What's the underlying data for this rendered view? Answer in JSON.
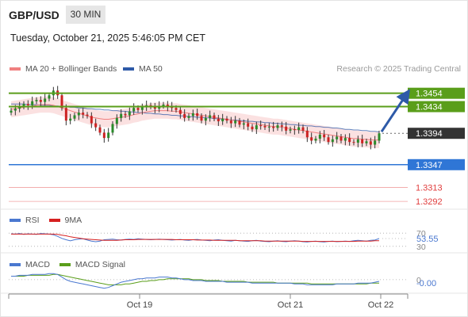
{
  "header": {
    "symbol": "GBP/USD",
    "timeframe": "30 MIN",
    "datetime": "Tuesday, October 21, 2025 5:46:05 PM CET"
  },
  "legend": {
    "ma20_label": "MA 20 + Bollinger Bands",
    "ma50_label": "MA 50",
    "credit": "Research © 2025 Trading Central"
  },
  "colors": {
    "ma20": "#f08080",
    "ma50": "#2e5aa8",
    "band_fill": "#fadcdc",
    "resistance": "#5a9e1a",
    "support_pivot": "#2f76d6",
    "support": "#e03c3c",
    "current": "#333333",
    "rsi": "#4a78d0",
    "rsi_ma": "#d62020",
    "macd": "#4a78d0",
    "macd_signal": "#5a9e1a",
    "candle_up": "#2a8a2a",
    "candle_down": "#cc2222"
  },
  "chart_data": [
    {
      "type": "candlestick",
      "name": "price",
      "x_tick_labels": [
        "Oct 19",
        "Oct 21",
        "Oct 22"
      ],
      "ylim": [
        1.3285,
        1.3475
      ],
      "levels": [
        {
          "label": "1.3454",
          "value": 1.3454,
          "kind": "resistance"
        },
        {
          "label": "1.3434",
          "value": 1.3434,
          "kind": "resistance"
        },
        {
          "label": "1.3394",
          "value": 1.3394,
          "kind": "current"
        },
        {
          "label": "1.3347",
          "value": 1.3347,
          "kind": "pivot"
        },
        {
          "label": "1.3313",
          "value": 1.3313,
          "kind": "support"
        },
        {
          "label": "1.3292",
          "value": 1.3292,
          "kind": "support"
        }
      ],
      "arrow": {
        "from": 1.3394,
        "to": 1.3454
      },
      "close": [
        1.3428,
        1.3431,
        1.3434,
        1.3438,
        1.3436,
        1.3442,
        1.3444,
        1.3441,
        1.3446,
        1.3451,
        1.3458,
        1.3451,
        1.3432,
        1.3413,
        1.3416,
        1.3421,
        1.3425,
        1.3422,
        1.342,
        1.3409,
        1.3403,
        1.3395,
        1.3387,
        1.3395,
        1.3408,
        1.3417,
        1.3423,
        1.3421,
        1.3427,
        1.3432,
        1.3429,
        1.3433,
        1.3436,
        1.3434,
        1.3431,
        1.3435,
        1.3437,
        1.3434,
        1.3432,
        1.3429,
        1.3423,
        1.3417,
        1.342,
        1.3424,
        1.342,
        1.3413,
        1.3417,
        1.3421,
        1.3416,
        1.3412,
        1.3416,
        1.3413,
        1.3409,
        1.3413,
        1.3407,
        1.3409,
        1.3404,
        1.34,
        1.3406,
        1.3405,
        1.3403,
        1.3404,
        1.3402,
        1.3406,
        1.3404,
        1.3398,
        1.34,
        1.3399,
        1.3403,
        1.3398,
        1.3388,
        1.3383,
        1.3386,
        1.3392,
        1.3388,
        1.3381,
        1.3385,
        1.3389,
        1.3383,
        1.3387,
        1.3381,
        1.338,
        1.3385,
        1.3379,
        1.3382,
        1.3377,
        1.3383,
        1.3394
      ],
      "ma20": [
        1.343,
        1.3431,
        1.3432,
        1.3433,
        1.3434,
        1.3435,
        1.3436,
        1.3437,
        1.3437,
        1.3437,
        1.3436,
        1.3434,
        1.3432,
        1.343,
        1.3428,
        1.3426,
        1.3424,
        1.3422,
        1.342,
        1.3418,
        1.3417,
        1.3416,
        1.3415,
        1.3415,
        1.3416,
        1.3417,
        1.3418,
        1.3419,
        1.342,
        1.3422,
        1.3423,
        1.3425,
        1.3426,
        1.3427,
        1.3428,
        1.3428,
        1.3428,
        1.3428,
        1.3427,
        1.3427,
        1.3426,
        1.3425,
        1.3424,
        1.3423,
        1.3422,
        1.3421,
        1.342,
        1.3419,
        1.3418,
        1.3417,
        1.3416,
        1.3415,
        1.3414,
        1.3413,
        1.3412,
        1.3411,
        1.341,
        1.3409,
        1.3408,
        1.3407,
        1.3406,
        1.3405,
        1.3404,
        1.3404,
        1.3403,
        1.3402,
        1.3401,
        1.34,
        1.3399,
        1.3398,
        1.3397,
        1.3396,
        1.3395,
        1.3394,
        1.3393,
        1.3392,
        1.3391,
        1.339,
        1.3389,
        1.3388,
        1.3387,
        1.3386,
        1.3386,
        1.3385,
        1.3385,
        1.3384,
        1.3384,
        1.3384
      ],
      "ma50": [
        1.3438,
        1.3438,
        1.3438,
        1.3438,
        1.3437,
        1.3437,
        1.3437,
        1.3436,
        1.3436,
        1.3436,
        1.3435,
        1.3435,
        1.3434,
        1.3434,
        1.3433,
        1.3433,
        1.3432,
        1.3432,
        1.3431,
        1.3431,
        1.343,
        1.343,
        1.3429,
        1.3429,
        1.3428,
        1.3428,
        1.3427,
        1.3427,
        1.3426,
        1.3426,
        1.3425,
        1.3425,
        1.3424,
        1.3424,
        1.3423,
        1.3423,
        1.3422,
        1.3422,
        1.3421,
        1.3421,
        1.342,
        1.342,
        1.3419,
        1.3419,
        1.3418,
        1.3418,
        1.3417,
        1.3417,
        1.3416,
        1.3416,
        1.3415,
        1.3415,
        1.3414,
        1.3414,
        1.3413,
        1.3413,
        1.3412,
        1.3412,
        1.3411,
        1.3411,
        1.341,
        1.341,
        1.3409,
        1.3409,
        1.3408,
        1.3408,
        1.3407,
        1.3407,
        1.3406,
        1.3406,
        1.3405,
        1.3405,
        1.3404,
        1.3404,
        1.3403,
        1.3403,
        1.3402,
        1.3402,
        1.3401,
        1.34,
        1.34,
        1.3399,
        1.3399,
        1.3398,
        1.3398,
        1.3397,
        1.3397,
        1.3396
      ],
      "band_width": 0.0012
    },
    {
      "type": "line",
      "name": "rsi",
      "legend": [
        "RSI",
        "9MA"
      ],
      "ylim": [
        20,
        80
      ],
      "levels": [
        {
          "label": "70",
          "value": 70
        },
        {
          "label": "30",
          "value": 30
        }
      ],
      "current_label": "53.55",
      "current": 53.55,
      "rsi": [
        68,
        67,
        69,
        66,
        68,
        67,
        66,
        69,
        68,
        67,
        65,
        60,
        54,
        50,
        47,
        50,
        52,
        53,
        49,
        46,
        44,
        46,
        50,
        51,
        52,
        50,
        49,
        51,
        52,
        51,
        53,
        52,
        51,
        50,
        51,
        52,
        51,
        50,
        49,
        50,
        51,
        49,
        48,
        50,
        51,
        49,
        48,
        47,
        49,
        50,
        48,
        47,
        46,
        48,
        47,
        46,
        45,
        47,
        48,
        46,
        45,
        44,
        46,
        47,
        45,
        44,
        46,
        47,
        46,
        44,
        43,
        45,
        46,
        44,
        43,
        45,
        46,
        44,
        45,
        46,
        45,
        47,
        48,
        47,
        46,
        48,
        49,
        53.55
      ],
      "rsi_ma": [
        67,
        67,
        67,
        67,
        67,
        67,
        67,
        67,
        67,
        67,
        67,
        66,
        64,
        62,
        59,
        57,
        55,
        53,
        52,
        51,
        50,
        49,
        48,
        48,
        48,
        48,
        49,
        50,
        50,
        50,
        51,
        51,
        51,
        51,
        51,
        51,
        51,
        51,
        51,
        50,
        50,
        50,
        50,
        50,
        49,
        49,
        49,
        49,
        48,
        48,
        48,
        48,
        48,
        48,
        47,
        47,
        47,
        47,
        47,
        47,
        46,
        46,
        46,
        46,
        46,
        46,
        46,
        46,
        46,
        45,
        45,
        45,
        45,
        45,
        45,
        45,
        45,
        45,
        45,
        45,
        45,
        45,
        46,
        46,
        46,
        46,
        47,
        47
      ]
    },
    {
      "type": "line",
      "name": "macd",
      "legend": [
        "MACD",
        "MACD Signal"
      ],
      "ylim": [
        -0.0012,
        0.0009
      ],
      "level_label": "0",
      "current_label": "-0.00",
      "current": -0.0002,
      "macd": [
        0.0004,
        0.0004,
        0.0005,
        0.0005,
        0.0005,
        0.0006,
        0.0006,
        0.0006,
        0.0006,
        0.0007,
        0.0007,
        0.0006,
        0.0003,
        0.0,
        -0.0002,
        -0.0003,
        -0.0004,
        -0.0005,
        -0.0006,
        -0.0007,
        -0.0008,
        -0.0009,
        -0.001,
        -0.0009,
        -0.0007,
        -0.0005,
        -0.0003,
        -0.0002,
        -0.0001,
        0.0,
        0.0001,
        0.0001,
        0.0002,
        0.0002,
        0.0002,
        0.0003,
        0.0003,
        0.0003,
        0.0002,
        0.0002,
        0.0001,
        0.0,
        0.0,
        -0.0001,
        -0.0001,
        -0.0001,
        -0.0002,
        -0.0002,
        -0.0002,
        -0.0002,
        -0.0002,
        -0.0003,
        -0.0003,
        -0.0003,
        -0.0003,
        -0.0003,
        -0.0003,
        -0.0004,
        -0.0004,
        -0.0004,
        -0.0004,
        -0.0004,
        -0.0004,
        -0.0004,
        -0.0004,
        -0.0004,
        -0.0004,
        -0.0005,
        -0.0005,
        -0.0005,
        -0.0006,
        -0.0006,
        -0.0006,
        -0.0006,
        -0.0006,
        -0.0006,
        -0.0006,
        -0.0005,
        -0.0005,
        -0.0005,
        -0.0005,
        -0.0005,
        -0.0004,
        -0.0004,
        -0.0004,
        -0.0004,
        -0.0003,
        -0.0002
      ],
      "signal": [
        0.0004,
        0.0004,
        0.0004,
        0.0004,
        0.0005,
        0.0005,
        0.0005,
        0.0005,
        0.0005,
        0.0005,
        0.0006,
        0.0006,
        0.0005,
        0.0004,
        0.0003,
        0.0002,
        0.0001,
        0.0,
        -0.0001,
        -0.0002,
        -0.0003,
        -0.0004,
        -0.0005,
        -0.0006,
        -0.0006,
        -0.0006,
        -0.0006,
        -0.0005,
        -0.0005,
        -0.0004,
        -0.0003,
        -0.0002,
        -0.0002,
        -0.0001,
        -0.0001,
        0.0,
        0.0,
        0.0001,
        0.0001,
        0.0001,
        0.0001,
        0.0001,
        0.0001,
        0.0,
        0.0,
        0.0,
        -0.0001,
        -0.0001,
        -0.0001,
        -0.0001,
        -0.0002,
        -0.0002,
        -0.0002,
        -0.0002,
        -0.0002,
        -0.0002,
        -0.0003,
        -0.0003,
        -0.0003,
        -0.0003,
        -0.0003,
        -0.0003,
        -0.0003,
        -0.0004,
        -0.0004,
        -0.0004,
        -0.0004,
        -0.0004,
        -0.0004,
        -0.0004,
        -0.0004,
        -0.0005,
        -0.0005,
        -0.0005,
        -0.0005,
        -0.0005,
        -0.0005,
        -0.0005,
        -0.0005,
        -0.0005,
        -0.0005,
        -0.0005,
        -0.0005,
        -0.0005,
        -0.0005,
        -0.0004,
        -0.0004,
        -0.0004
      ]
    }
  ]
}
